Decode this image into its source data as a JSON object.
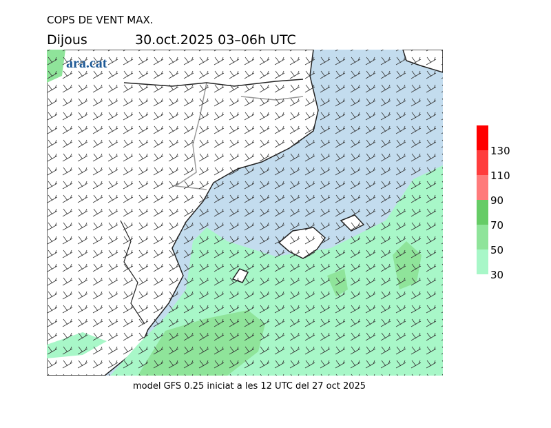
{
  "header": {
    "title": "COPS DE VENT MAX.",
    "day": "Dijous",
    "period": "30.oct.2025 03–06h UTC",
    "logo": "ara.cat"
  },
  "legend": {
    "levels": [
      30,
      50,
      70,
      90,
      110,
      130
    ],
    "colors": [
      "#a8f7c8",
      "#8fe49a",
      "#66cc66",
      "#ff7b7b",
      "#ff3d3d",
      "#ff0000"
    ]
  },
  "footer": "model GFS 0.25 iniciat a les 12 UTC del 27 oct 2025"
}
